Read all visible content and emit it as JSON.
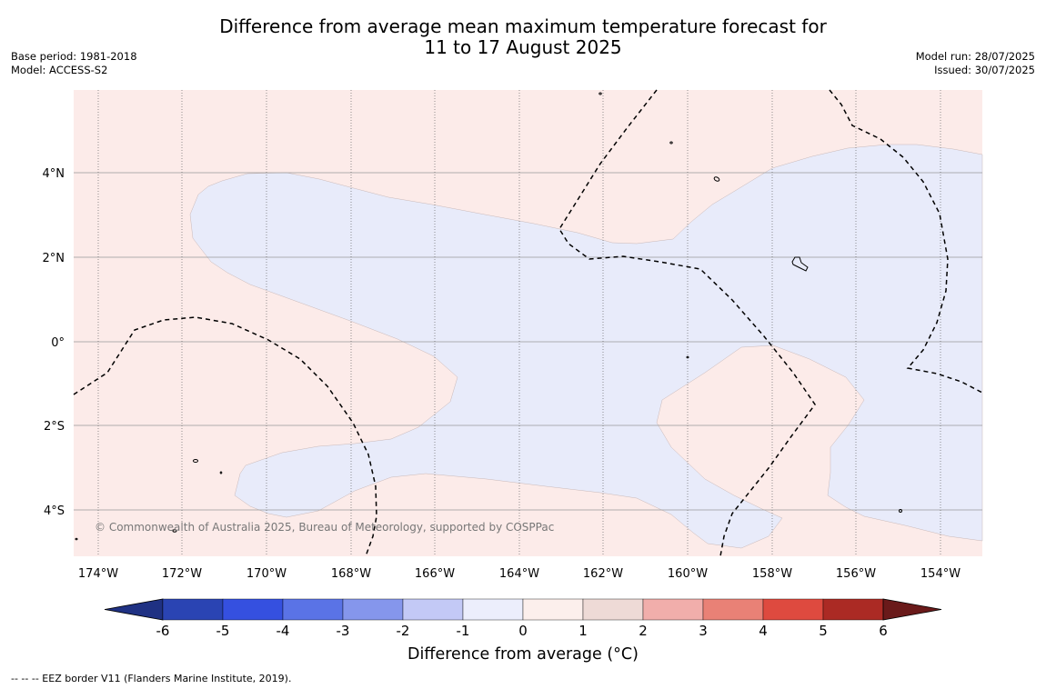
{
  "title": {
    "line1": "Difference from average mean maximum temperature forecast for",
    "line2": "11 to 17 August 2025"
  },
  "meta_left": {
    "base_period": "Base period: 1981-2018",
    "model": "Model: ACCESS-S2"
  },
  "meta_right": {
    "model_run": "Model run: 28/07/2025",
    "issued": "Issued: 30/07/2025"
  },
  "map": {
    "copyright": "© Commonwealth of Australia 2025, Bureau of Meteorology, supported by COSPPac",
    "lat_labels": [
      "4°N",
      "2°N",
      "0°",
      "2°S",
      "4°S"
    ],
    "lon_labels": [
      "174°W",
      "172°W",
      "170°W",
      "168°W",
      "166°W",
      "164°W",
      "162°W",
      "160°W",
      "158°W",
      "156°W",
      "154°W"
    ],
    "colors": {
      "background": "#fcebe9",
      "cool_region": "#e8ebfa",
      "gridline": "#999999",
      "eez_border": "#000000"
    }
  },
  "colorbar": {
    "tick_labels": [
      "-6",
      "-5",
      "-4",
      "-3",
      "-2",
      "-1",
      "0",
      "1",
      "2",
      "3",
      "4",
      "5",
      "6"
    ],
    "colors": [
      "#1f3183",
      "#2a44b3",
      "#3550e0",
      "#5a73e6",
      "#8596ec",
      "#c3c9f6",
      "#eceefc",
      "#fcefec",
      "#eedad6",
      "#f1aeab",
      "#e98176",
      "#de4a3f",
      "#ab2a24",
      "#6a1a1a"
    ],
    "label": "Difference from average (°C)"
  },
  "footnote": "--  --  -- EEZ border V11 (Flanders Marine Institute, 2019)."
}
